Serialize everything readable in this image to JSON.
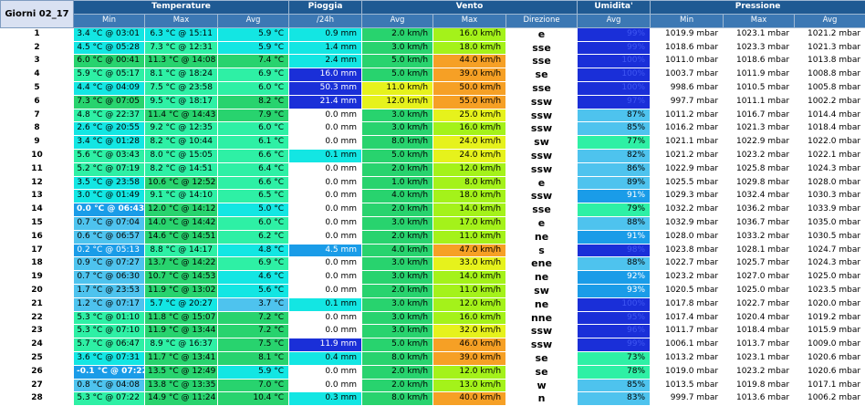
{
  "header": {
    "corner_label": "Giorni 02_17",
    "groups": [
      "Temperature",
      "Pioggia",
      "Vento",
      "Umidita'",
      "Pressione"
    ],
    "subheaders": [
      "Min",
      "Max",
      "Avg",
      "/24h",
      "Avg",
      "Max",
      "Direzione",
      "Avg",
      "Min",
      "Max",
      "Avg"
    ]
  },
  "colors": {
    "header": "#1f5a93",
    "subheader": "#3c78b4",
    "green": "#28d36e",
    "cyan": "#13e6e3",
    "mint": "#2ef0a5",
    "blue_dark": "#1a2fd8",
    "blue_mid": "#1a9ce8",
    "sky": "#4ec3ee",
    "yellow": "#e6f21c",
    "orange": "#f6a025",
    "lime": "#a4f21a"
  },
  "rows": [
    {
      "day": "1",
      "tmin": "3.4 °C @ 03:01",
      "tmax": "6.3 °C @ 15:11",
      "tavg": "5.9 °C",
      "rain": "0.9 mm",
      "wavg": "2.0 km/h",
      "wmax": "16.0 km/h",
      "dir": "e",
      "hum": "99%",
      "pmin": "1019.9 mbar",
      "pmax": "1023.1 mbar",
      "pavg": "1021.2 mbar"
    },
    {
      "day": "2",
      "tmin": "4.5 °C @ 05:28",
      "tmax": "7.3 °C @ 12:31",
      "tavg": "5.9 °C",
      "rain": "1.4 mm",
      "wavg": "3.0 km/h",
      "wmax": "18.0 km/h",
      "dir": "sse",
      "hum": "99%",
      "pmin": "1018.6 mbar",
      "pmax": "1023.3 mbar",
      "pavg": "1021.3 mbar"
    },
    {
      "day": "3",
      "tmin": "6.0 °C @ 00:41",
      "tmax": "11.3 °C @ 14:08",
      "tavg": "7.4 °C",
      "rain": "2.4 mm",
      "wavg": "5.0 km/h",
      "wmax": "44.0 km/h",
      "dir": "sse",
      "hum": "100%",
      "pmin": "1011.0 mbar",
      "pmax": "1018.6 mbar",
      "pavg": "1013.8 mbar"
    },
    {
      "day": "4",
      "tmin": "5.9 °C @ 05:17",
      "tmax": "8.1 °C @ 18:24",
      "tavg": "6.9 °C",
      "rain": "16.0 mm",
      "wavg": "5.0 km/h",
      "wmax": "39.0 km/h",
      "dir": "se",
      "hum": "100%",
      "pmin": "1003.7 mbar",
      "pmax": "1011.9 mbar",
      "pavg": "1008.8 mbar"
    },
    {
      "day": "5",
      "tmin": "4.4 °C @ 04:09",
      "tmax": "7.5 °C @ 23:58",
      "tavg": "6.0 °C",
      "rain": "50.3 mm",
      "wavg": "11.0 km/h",
      "wmax": "50.0 km/h",
      "dir": "sse",
      "hum": "100%",
      "pmin": "998.6 mbar",
      "pmax": "1010.5 mbar",
      "pavg": "1005.8 mbar"
    },
    {
      "day": "6",
      "tmin": "7.3 °C @ 07:05",
      "tmax": "9.5 °C @ 18:17",
      "tavg": "8.2 °C",
      "rain": "21.4 mm",
      "wavg": "12.0 km/h",
      "wmax": "55.0 km/h",
      "dir": "ssw",
      "hum": "97%",
      "pmin": "997.7 mbar",
      "pmax": "1011.1 mbar",
      "pavg": "1002.2 mbar"
    },
    {
      "day": "7",
      "tmin": "4.8 °C @ 22:37",
      "tmax": "11.4 °C @ 14:43",
      "tavg": "7.9 °C",
      "rain": "0.0 mm",
      "wavg": "3.0 km/h",
      "wmax": "25.0 km/h",
      "dir": "ssw",
      "hum": "87%",
      "pmin": "1011.2 mbar",
      "pmax": "1016.7 mbar",
      "pavg": "1014.4 mbar"
    },
    {
      "day": "8",
      "tmin": "2.6 °C @ 20:55",
      "tmax": "9.2 °C @ 12:35",
      "tavg": "6.0 °C",
      "rain": "0.0 mm",
      "wavg": "3.0 km/h",
      "wmax": "16.0 km/h",
      "dir": "ssw",
      "hum": "85%",
      "pmin": "1016.2 mbar",
      "pmax": "1021.3 mbar",
      "pavg": "1018.4 mbar"
    },
    {
      "day": "9",
      "tmin": "3.4 °C @ 01:28",
      "tmax": "8.2 °C @ 10:44",
      "tavg": "6.1 °C",
      "rain": "0.0 mm",
      "wavg": "8.0 km/h",
      "wmax": "24.0 km/h",
      "dir": "sw",
      "hum": "77%",
      "pmin": "1021.1 mbar",
      "pmax": "1022.9 mbar",
      "pavg": "1022.0 mbar"
    },
    {
      "day": "10",
      "tmin": "5.6 °C @ 03:43",
      "tmax": "8.0 °C @ 15:05",
      "tavg": "6.6 °C",
      "rain": "0.1 mm",
      "wavg": "5.0 km/h",
      "wmax": "24.0 km/h",
      "dir": "ssw",
      "hum": "82%",
      "pmin": "1021.2 mbar",
      "pmax": "1023.2 mbar",
      "pavg": "1022.1 mbar"
    },
    {
      "day": "11",
      "tmin": "5.2 °C @ 07:19",
      "tmax": "8.2 °C @ 14:51",
      "tavg": "6.4 °C",
      "rain": "0.0 mm",
      "wavg": "2.0 km/h",
      "wmax": "12.0 km/h",
      "dir": "ssw",
      "hum": "86%",
      "pmin": "1022.9 mbar",
      "pmax": "1025.8 mbar",
      "pavg": "1024.3 mbar"
    },
    {
      "day": "12",
      "tmin": "3.5 °C @ 23:58",
      "tmax": "10.6 °C @ 12:52",
      "tavg": "6.6 °C",
      "rain": "0.0 mm",
      "wavg": "1.0 km/h",
      "wmax": "8.0 km/h",
      "dir": "e",
      "hum": "89%",
      "pmin": "1025.5 mbar",
      "pmax": "1029.8 mbar",
      "pavg": "1028.0 mbar"
    },
    {
      "day": "13",
      "tmin": "3.0 °C @ 01:49",
      "tmax": "9.1 °C @ 14:10",
      "tavg": "6.5 °C",
      "rain": "0.0 mm",
      "wavg": "4.0 km/h",
      "wmax": "18.0 km/h",
      "dir": "ssw",
      "hum": "91%",
      "pmin": "1029.3 mbar",
      "pmax": "1032.4 mbar",
      "pavg": "1030.3 mbar"
    },
    {
      "day": "14",
      "tmin": "0.0 °C @ 06:43",
      "tmax": "12.0 °C @ 14:12",
      "tavg": "5.0 °C",
      "rain": "0.0 mm",
      "wavg": "2.0 km/h",
      "wmax": "14.0 km/h",
      "dir": "sse",
      "hum": "79%",
      "pmin": "1032.2 mbar",
      "pmax": "1036.2 mbar",
      "pavg": "1033.9 mbar"
    },
    {
      "day": "15",
      "tmin": "0.7 °C @ 07:04",
      "tmax": "14.0 °C @ 14:42",
      "tavg": "6.0 °C",
      "rain": "0.0 mm",
      "wavg": "3.0 km/h",
      "wmax": "17.0 km/h",
      "dir": "e",
      "hum": "88%",
      "pmin": "1032.9 mbar",
      "pmax": "1036.7 mbar",
      "pavg": "1035.0 mbar"
    },
    {
      "day": "16",
      "tmin": "0.6 °C @ 06:57",
      "tmax": "14.6 °C @ 14:51",
      "tavg": "6.2 °C",
      "rain": "0.0 mm",
      "wavg": "2.0 km/h",
      "wmax": "11.0 km/h",
      "dir": "ne",
      "hum": "91%",
      "pmin": "1028.0 mbar",
      "pmax": "1033.2 mbar",
      "pavg": "1030.5 mbar"
    },
    {
      "day": "17",
      "tmin": "0.2 °C @ 05:13",
      "tmax": "8.8 °C @ 14:17",
      "tavg": "4.8 °C",
      "rain": "4.5 mm",
      "wavg": "4.0 km/h",
      "wmax": "47.0 km/h",
      "dir": "s",
      "hum": "98%",
      "pmin": "1023.8 mbar",
      "pmax": "1028.1 mbar",
      "pavg": "1024.7 mbar"
    },
    {
      "day": "18",
      "tmin": "0.9 °C @ 07:27",
      "tmax": "13.7 °C @ 14:22",
      "tavg": "6.9 °C",
      "rain": "0.0 mm",
      "wavg": "3.0 km/h",
      "wmax": "33.0 km/h",
      "dir": "ene",
      "hum": "88%",
      "pmin": "1022.7 mbar",
      "pmax": "1025.7 mbar",
      "pavg": "1024.3 mbar"
    },
    {
      "day": "19",
      "tmin": "0.7 °C @ 06:30",
      "tmax": "10.7 °C @ 14:53",
      "tavg": "4.6 °C",
      "rain": "0.0 mm",
      "wavg": "3.0 km/h",
      "wmax": "14.0 km/h",
      "dir": "ne",
      "hum": "92%",
      "pmin": "1023.2 mbar",
      "pmax": "1027.0 mbar",
      "pavg": "1025.0 mbar"
    },
    {
      "day": "20",
      "tmin": "1.7 °C @ 23:53",
      "tmax": "11.9 °C @ 13:02",
      "tavg": "5.6 °C",
      "rain": "0.0 mm",
      "wavg": "2.0 km/h",
      "wmax": "11.0 km/h",
      "dir": "sw",
      "hum": "93%",
      "pmin": "1020.5 mbar",
      "pmax": "1025.0 mbar",
      "pavg": "1023.5 mbar"
    },
    {
      "day": "21",
      "tmin": "1.2 °C @ 07:17",
      "tmax": "5.7 °C @ 20:27",
      "tavg": "3.7 °C",
      "rain": "0.1 mm",
      "wavg": "3.0 km/h",
      "wmax": "12.0 km/h",
      "dir": "ne",
      "hum": "100%",
      "pmin": "1017.8 mbar",
      "pmax": "1022.7 mbar",
      "pavg": "1020.0 mbar"
    },
    {
      "day": "22",
      "tmin": "5.3 °C @ 01:10",
      "tmax": "11.8 °C @ 15:07",
      "tavg": "7.2 °C",
      "rain": "0.0 mm",
      "wavg": "3.0 km/h",
      "wmax": "16.0 km/h",
      "dir": "nne",
      "hum": "95%",
      "pmin": "1017.4 mbar",
      "pmax": "1020.4 mbar",
      "pavg": "1019.2 mbar"
    },
    {
      "day": "23",
      "tmin": "5.3 °C @ 07:10",
      "tmax": "11.9 °C @ 13:44",
      "tavg": "7.2 °C",
      "rain": "0.0 mm",
      "wavg": "3.0 km/h",
      "wmax": "32.0 km/h",
      "dir": "ssw",
      "hum": "96%",
      "pmin": "1011.7 mbar",
      "pmax": "1018.4 mbar",
      "pavg": "1015.9 mbar"
    },
    {
      "day": "24",
      "tmin": "5.7 °C @ 06:47",
      "tmax": "8.9 °C @ 16:37",
      "tavg": "7.5 °C",
      "rain": "11.9 mm",
      "wavg": "5.0 km/h",
      "wmax": "46.0 km/h",
      "dir": "ssw",
      "hum": "99%",
      "pmin": "1006.1 mbar",
      "pmax": "1013.7 mbar",
      "pavg": "1009.0 mbar"
    },
    {
      "day": "25",
      "tmin": "3.6 °C @ 07:31",
      "tmax": "11.7 °C @ 13:41",
      "tavg": "8.1 °C",
      "rain": "0.4 mm",
      "wavg": "8.0 km/h",
      "wmax": "39.0 km/h",
      "dir": "se",
      "hum": "73%",
      "pmin": "1013.2 mbar",
      "pmax": "1023.1 mbar",
      "pavg": "1020.6 mbar"
    },
    {
      "day": "26",
      "tmin": "-0.1 °C @ 07:22",
      "tmax": "13.5 °C @ 12:49",
      "tavg": "5.9 °C",
      "rain": "0.0 mm",
      "wavg": "2.0 km/h",
      "wmax": "12.0 km/h",
      "dir": "se",
      "hum": "78%",
      "pmin": "1019.0 mbar",
      "pmax": "1023.2 mbar",
      "pavg": "1020.6 mbar"
    },
    {
      "day": "27",
      "tmin": "0.8 °C @ 04:08",
      "tmax": "13.8 °C @ 13:35",
      "tavg": "7.0 °C",
      "rain": "0.0 mm",
      "wavg": "2.0 km/h",
      "wmax": "13.0 km/h",
      "dir": "w",
      "hum": "85%",
      "pmin": "1013.5 mbar",
      "pmax": "1019.8 mbar",
      "pavg": "1017.1 mbar"
    },
    {
      "day": "28",
      "tmin": "5.3 °C @ 07:22",
      "tmax": "14.9 °C @ 11:24",
      "tavg": "10.4 °C",
      "rain": "0.3 mm",
      "wavg": "8.0 km/h",
      "wmax": "40.0 km/h",
      "dir": "n",
      "hum": "83%",
      "pmin": "999.7 mbar",
      "pmax": "1013.6 mbar",
      "pavg": "1006.2 mbar"
    }
  ]
}
